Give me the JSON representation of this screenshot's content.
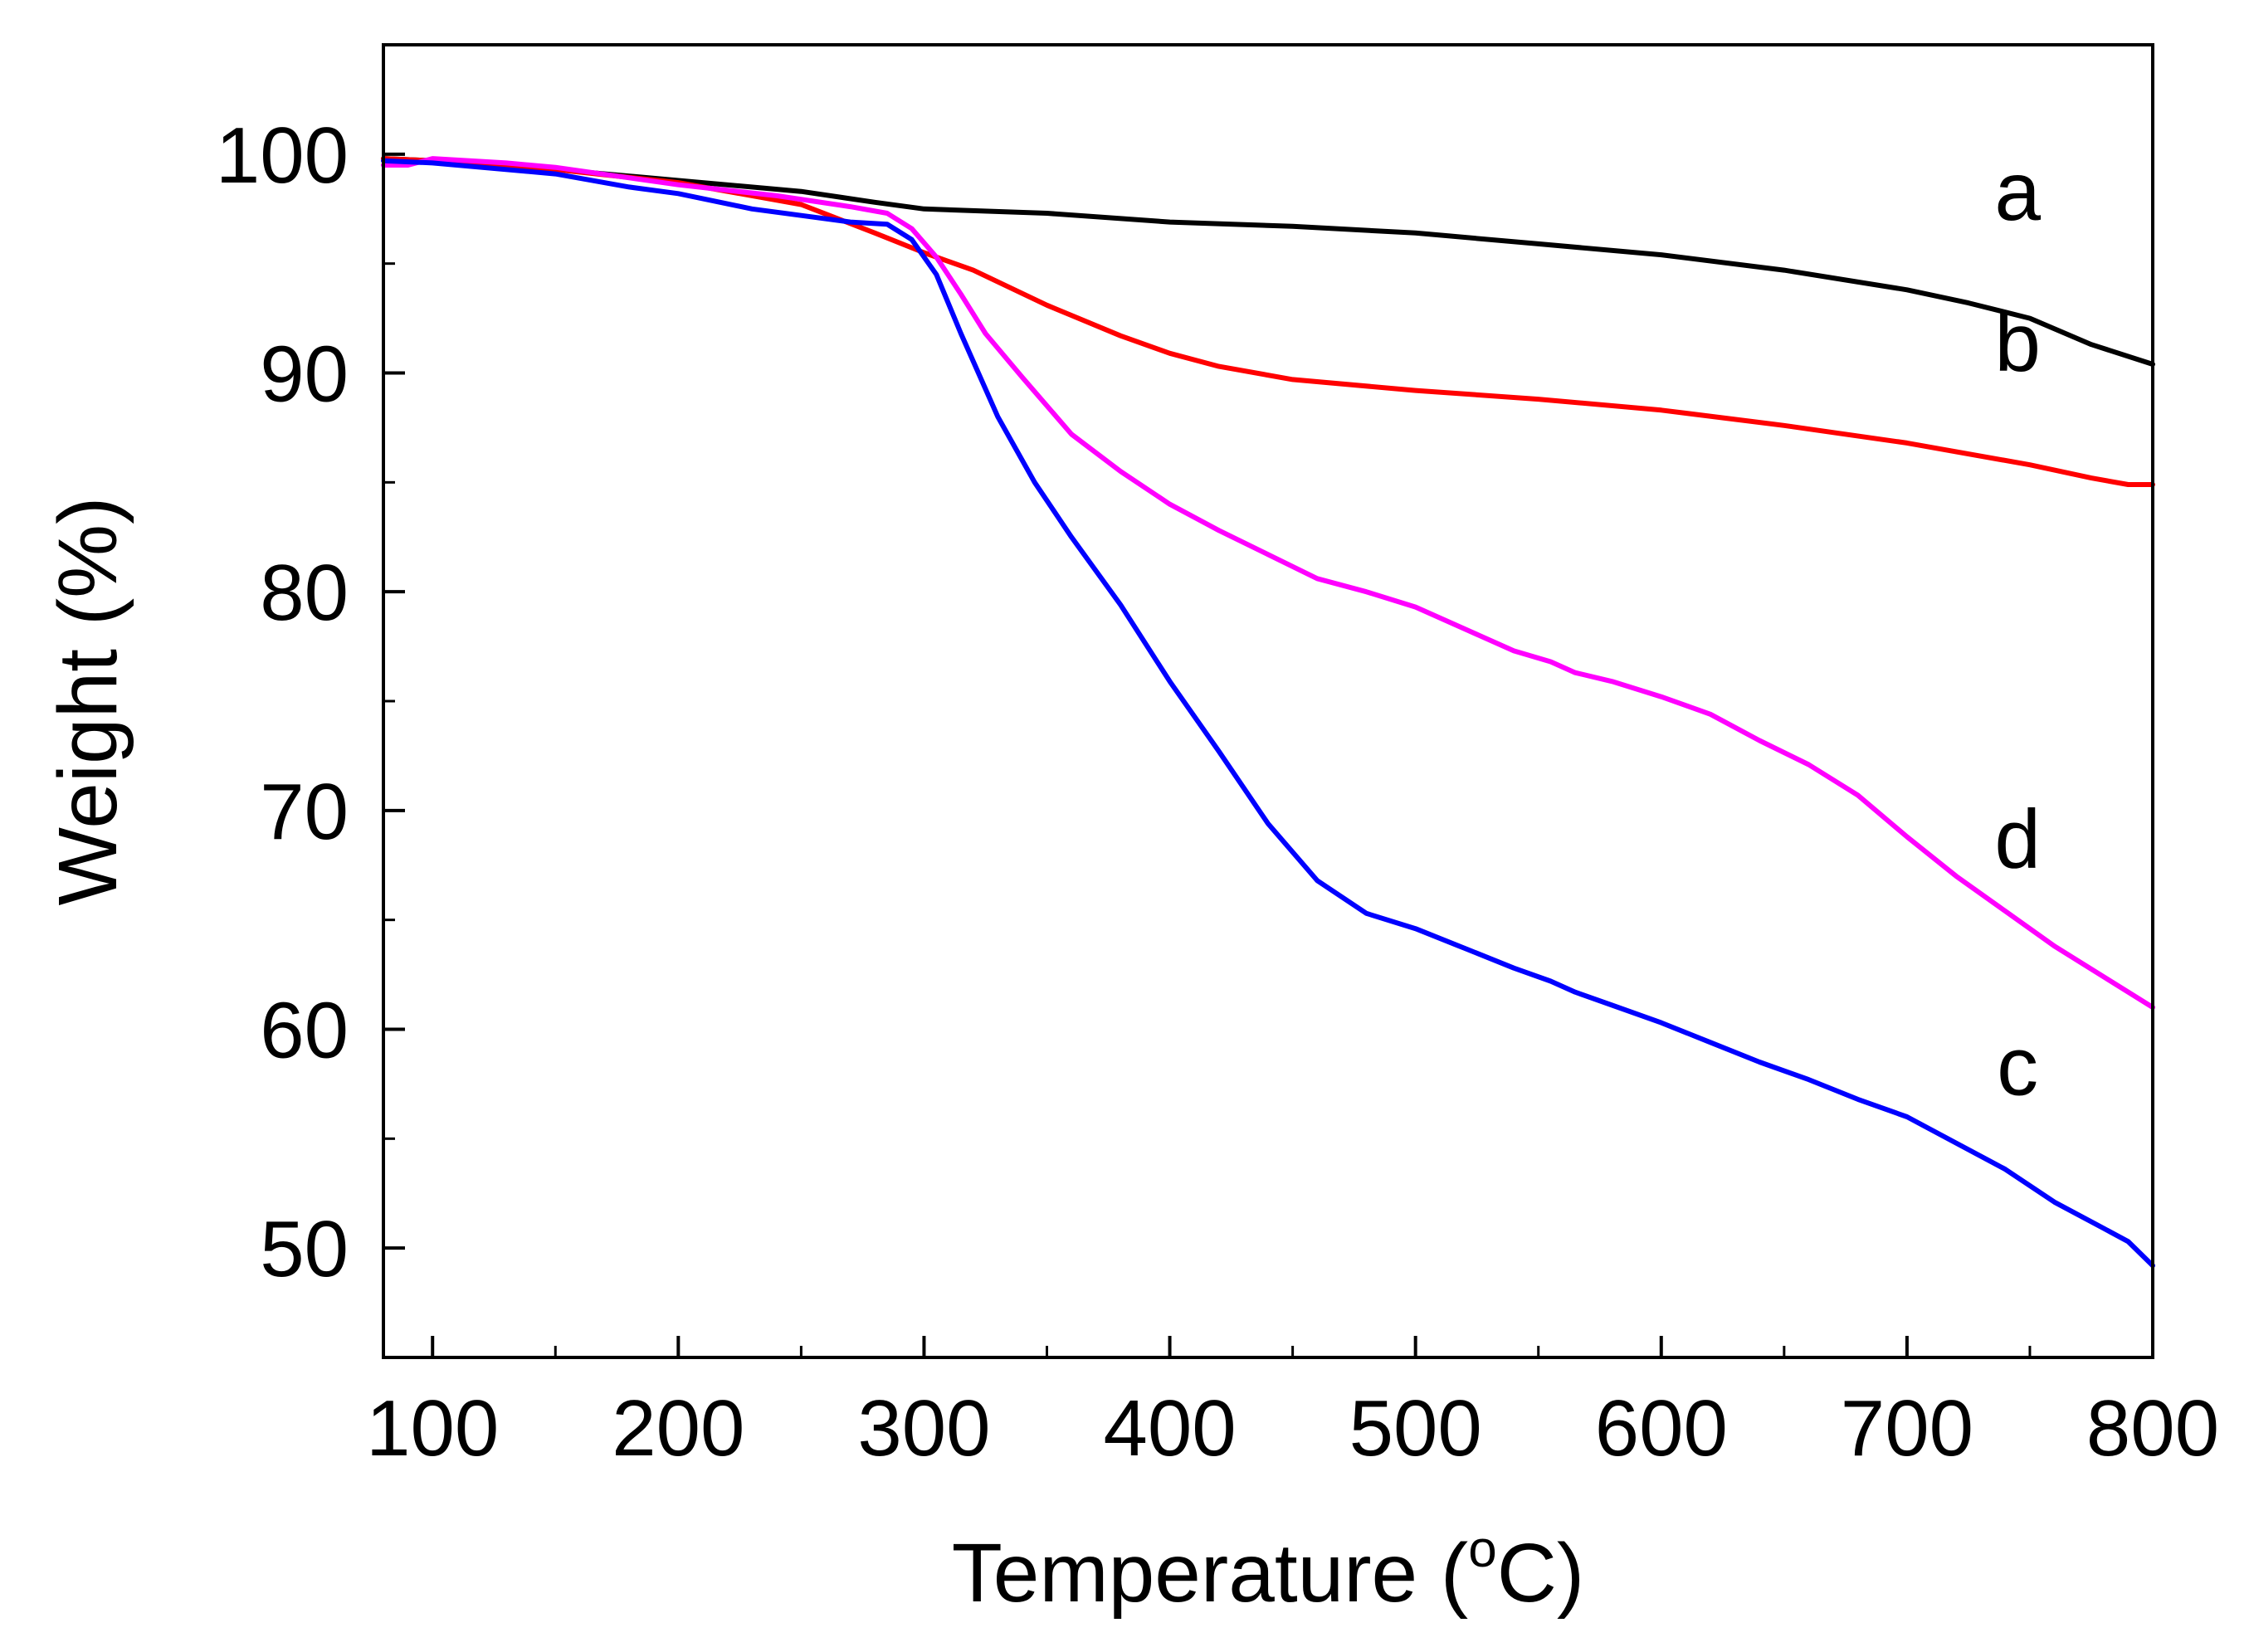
{
  "chart_data": {
    "type": "line",
    "title": "",
    "xlabel": "Temperature (",
    "xlabel_degree": "o",
    "xlabel_unit": "C)",
    "ylabel": "Weight (%)",
    "xlim": [
      80,
      800
    ],
    "ylim": [
      45,
      105
    ],
    "xticks": [
      100,
      200,
      300,
      400,
      500,
      600,
      700,
      800
    ],
    "xtick_labels": [
      "100",
      "200",
      "300",
      "400",
      "500",
      "600",
      "700",
      "800"
    ],
    "yticks": [
      50,
      60,
      70,
      80,
      90,
      100
    ],
    "ytick_labels": [
      "50",
      "60",
      "70",
      "80",
      "90",
      "100"
    ],
    "grid": false,
    "series": [
      {
        "name": "a",
        "color": "#000000",
        "label_at": [
          745,
          97.0
        ],
        "points": [
          [
            80,
            99.8
          ],
          [
            100,
            99.7
          ],
          [
            150,
            99.3
          ],
          [
            200,
            98.8
          ],
          [
            250,
            98.3
          ],
          [
            280,
            97.8
          ],
          [
            300,
            97.5
          ],
          [
            350,
            97.3
          ],
          [
            400,
            96.9
          ],
          [
            450,
            96.7
          ],
          [
            500,
            96.4
          ],
          [
            550,
            95.9
          ],
          [
            600,
            95.4
          ],
          [
            650,
            94.7
          ],
          [
            700,
            93.8
          ],
          [
            725,
            93.2
          ],
          [
            750,
            92.5
          ],
          [
            775,
            91.3
          ],
          [
            800,
            90.4
          ]
        ]
      },
      {
        "name": "b",
        "color": "#ff0000",
        "label_at": [
          745,
          90.1
        ],
        "points": [
          [
            80,
            99.8
          ],
          [
            100,
            99.7
          ],
          [
            150,
            99.3
          ],
          [
            200,
            98.7
          ],
          [
            250,
            97.7
          ],
          [
            280,
            96.4
          ],
          [
            300,
            95.5
          ],
          [
            320,
            94.7
          ],
          [
            350,
            93.1
          ],
          [
            380,
            91.7
          ],
          [
            400,
            90.9
          ],
          [
            420,
            90.3
          ],
          [
            450,
            89.7
          ],
          [
            500,
            89.2
          ],
          [
            550,
            88.8
          ],
          [
            600,
            88.3
          ],
          [
            650,
            87.6
          ],
          [
            700,
            86.8
          ],
          [
            750,
            85.8
          ],
          [
            775,
            85.2
          ],
          [
            790,
            84.9
          ],
          [
            800,
            84.9
          ]
        ]
      },
      {
        "name": "d",
        "color": "#ff00ff",
        "label_at": [
          745,
          67.4
        ],
        "points": [
          [
            80,
            99.5
          ],
          [
            90,
            99.5
          ],
          [
            100,
            99.8
          ],
          [
            130,
            99.6
          ],
          [
            150,
            99.4
          ],
          [
            200,
            98.6
          ],
          [
            240,
            98.1
          ],
          [
            270,
            97.6
          ],
          [
            285,
            97.3
          ],
          [
            295,
            96.6
          ],
          [
            305,
            95.3
          ],
          [
            315,
            93.6
          ],
          [
            325,
            91.8
          ],
          [
            340,
            89.8
          ],
          [
            360,
            87.2
          ],
          [
            380,
            85.5
          ],
          [
            400,
            84.0
          ],
          [
            420,
            82.8
          ],
          [
            440,
            81.7
          ],
          [
            460,
            80.6
          ],
          [
            480,
            80.0
          ],
          [
            500,
            79.3
          ],
          [
            520,
            78.3
          ],
          [
            540,
            77.3
          ],
          [
            555,
            76.8
          ],
          [
            565,
            76.3
          ],
          [
            580,
            75.9
          ],
          [
            600,
            75.2
          ],
          [
            620,
            74.4
          ],
          [
            640,
            73.2
          ],
          [
            660,
            72.1
          ],
          [
            680,
            70.7
          ],
          [
            700,
            68.8
          ],
          [
            720,
            67.0
          ],
          [
            740,
            65.4
          ],
          [
            760,
            63.8
          ],
          [
            780,
            62.4
          ],
          [
            800,
            61.0
          ]
        ]
      },
      {
        "name": "c",
        "color": "#0000ff",
        "label_at": [
          745,
          57.0
        ],
        "points": [
          [
            80,
            99.7
          ],
          [
            100,
            99.6
          ],
          [
            150,
            99.1
          ],
          [
            180,
            98.5
          ],
          [
            200,
            98.2
          ],
          [
            230,
            97.5
          ],
          [
            250,
            97.2
          ],
          [
            270,
            96.9
          ],
          [
            285,
            96.8
          ],
          [
            295,
            96.1
          ],
          [
            305,
            94.5
          ],
          [
            315,
            91.8
          ],
          [
            330,
            88.0
          ],
          [
            345,
            85.0
          ],
          [
            360,
            82.5
          ],
          [
            380,
            79.4
          ],
          [
            400,
            75.9
          ],
          [
            420,
            72.7
          ],
          [
            440,
            69.4
          ],
          [
            460,
            66.8
          ],
          [
            480,
            65.3
          ],
          [
            500,
            64.6
          ],
          [
            520,
            63.7
          ],
          [
            540,
            62.8
          ],
          [
            555,
            62.2
          ],
          [
            565,
            61.7
          ],
          [
            580,
            61.1
          ],
          [
            600,
            60.3
          ],
          [
            620,
            59.4
          ],
          [
            640,
            58.5
          ],
          [
            660,
            57.7
          ],
          [
            680,
            56.8
          ],
          [
            700,
            56.0
          ],
          [
            720,
            54.8
          ],
          [
            740,
            53.6
          ],
          [
            760,
            52.1
          ],
          [
            780,
            50.9
          ],
          [
            790,
            50.3
          ],
          [
            800,
            49.2
          ]
        ]
      }
    ]
  }
}
